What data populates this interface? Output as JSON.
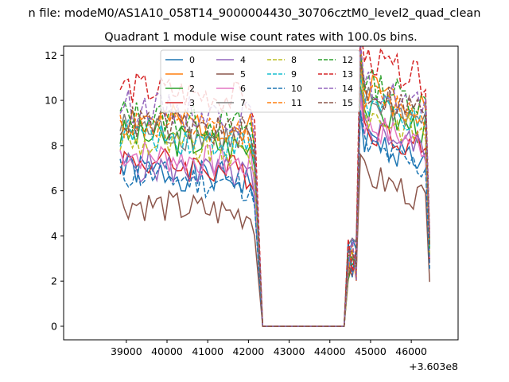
{
  "chart_data": {
    "type": "line",
    "suptitle": "n file: modeM0/AS1A10_058T14_9000004430_30706cztM0_level2_quad_clean",
    "title": "Quadrant 1 module wise count rates with 100.0s bins.",
    "xlabel": "",
    "ylabel": "",
    "offset_text": "+3.603e8",
    "xlim": [
      37460,
      47150
    ],
    "ylim": [
      -0.6,
      12.4
    ],
    "xticks": [
      39000,
      40000,
      41000,
      42000,
      43000,
      44000,
      45000,
      46000
    ],
    "yticks": [
      0,
      2,
      4,
      6,
      8,
      10,
      12
    ],
    "legend_position": "upper-center",
    "bin_seconds": 100,
    "x_range": [
      38850,
      46450
    ],
    "gap": {
      "start": 42150,
      "end": 44350
    },
    "series": [
      {
        "name": "0",
        "color": "#1f77b4",
        "dash": "solid",
        "base": 7.0,
        "recover": 7.2,
        "seed": 1
      },
      {
        "name": "1",
        "color": "#ff7f0e",
        "dash": "solid",
        "base": 9.3,
        "recover": 9.7,
        "seed": 2
      },
      {
        "name": "2",
        "color": "#2ca02c",
        "dash": "solid",
        "base": 8.5,
        "recover": 8.6,
        "seed": 3
      },
      {
        "name": "3",
        "color": "#d62728",
        "dash": "solid",
        "base": 7.4,
        "recover": 7.8,
        "seed": 4
      },
      {
        "name": "4",
        "color": "#9467bd",
        "dash": "solid",
        "base": 7.2,
        "recover": 7.8,
        "seed": 5
      },
      {
        "name": "5",
        "color": "#8c564b",
        "dash": "solid",
        "base": 5.5,
        "recover": 5.6,
        "seed": 6
      },
      {
        "name": "6",
        "color": "#e377c2",
        "dash": "solid",
        "base": 7.7,
        "recover": 7.9,
        "seed": 7
      },
      {
        "name": "7",
        "color": "#7f7f7f",
        "dash": "solid",
        "base": 8.8,
        "recover": 9.0,
        "seed": 8
      },
      {
        "name": "8",
        "color": "#bcbd22",
        "dash": "dashed",
        "base": 8.2,
        "recover": 8.4,
        "seed": 9
      },
      {
        "name": "9",
        "color": "#17becf",
        "dash": "dashed",
        "base": 8.6,
        "recover": 8.8,
        "seed": 10
      },
      {
        "name": "10",
        "color": "#1f77b4",
        "dash": "dashed",
        "base": 6.8,
        "recover": 6.9,
        "seed": 11
      },
      {
        "name": "11",
        "color": "#ff7f0e",
        "dash": "dashed",
        "base": 9.0,
        "recover": 9.2,
        "seed": 12
      },
      {
        "name": "12",
        "color": "#2ca02c",
        "dash": "dashed",
        "base": 9.4,
        "recover": 9.8,
        "seed": 13
      },
      {
        "name": "13",
        "color": "#d62728",
        "dash": "dashed",
        "base": 10.6,
        "recover": 10.8,
        "seed": 14
      },
      {
        "name": "14",
        "color": "#9467bd",
        "dash": "dashed",
        "base": 9.8,
        "recover": 9.6,
        "seed": 15
      },
      {
        "name": "15",
        "color": "#8c564b",
        "dash": "dashed",
        "base": 9.1,
        "recover": 9.4,
        "seed": 16
      }
    ]
  }
}
